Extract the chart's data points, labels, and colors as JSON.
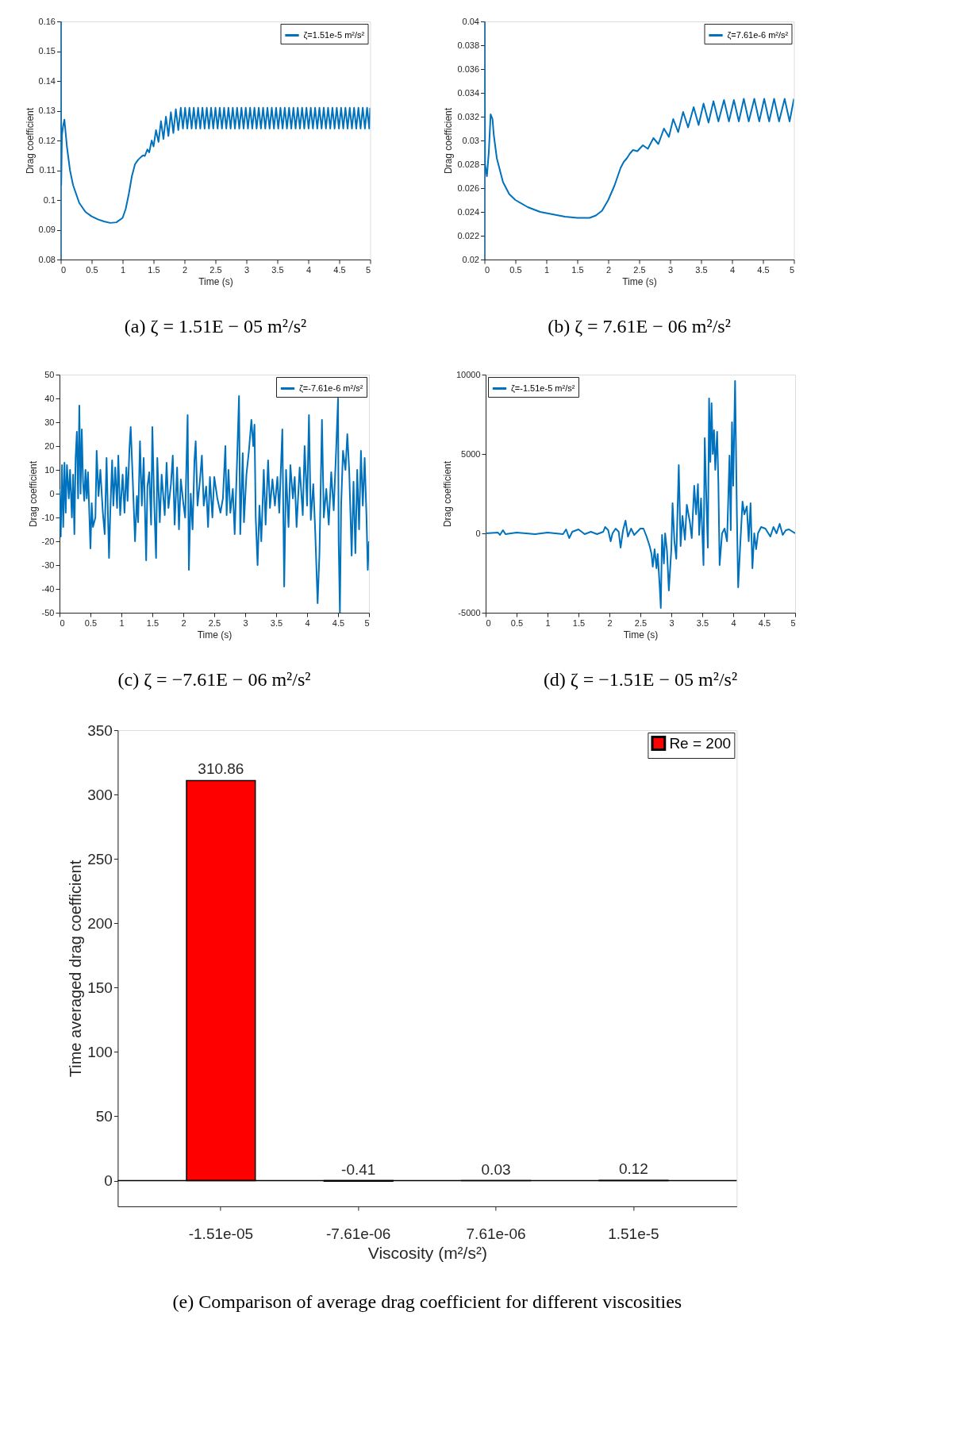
{
  "chart_data": [
    {
      "type": "line",
      "title": "(a) ζ = 1.51E − 05 m²/s²",
      "xlabel": "Time (s)",
      "ylabel": "Drag coefficient",
      "xlim": [
        0,
        5
      ],
      "xticks": [
        0,
        0.5,
        1,
        1.5,
        2,
        2.5,
        3,
        3.5,
        4,
        4.5,
        5
      ],
      "ylim": [
        0.08,
        0.16
      ],
      "yticks": [
        0.08,
        0.09,
        0.1,
        0.11,
        0.12,
        0.13,
        0.14,
        0.15,
        0.16
      ],
      "legend": "top right",
      "series": [
        {
          "name": "ζ=1.51e-5 m²/s²",
          "color": "#0072bd",
          "x": [
            0,
            0.003,
            0.008,
            0.02,
            0.04,
            0.06,
            0.1,
            0.15,
            0.2,
            0.3,
            0.4,
            0.5,
            0.6,
            0.7,
            0.8,
            0.9,
            1.0,
            1.05,
            1.1,
            1.15,
            1.2,
            1.25,
            1.3,
            1.33,
            1.36,
            1.4,
            1.43,
            1.47,
            1.5,
            1.54,
            1.58,
            1.62,
            1.66,
            1.7,
            1.74,
            1.78,
            1.82,
            1.86,
            1.9,
            1.94,
            1.975,
            2.01,
            2.045,
            2.08,
            2.115,
            2.15,
            2.185,
            2.22,
            2.255,
            2.29,
            2.325,
            2.36,
            2.395,
            2.43,
            2.465,
            2.5,
            2.535,
            2.57,
            2.605,
            2.64,
            2.675,
            2.71,
            2.745,
            2.78,
            2.815,
            2.85,
            2.885,
            2.92,
            2.955,
            2.99,
            3.025,
            3.06,
            3.095,
            3.13,
            3.165,
            3.2,
            3.235,
            3.27,
            3.305,
            3.34,
            3.375,
            3.41,
            3.445,
            3.48,
            3.515,
            3.55,
            3.585,
            3.62,
            3.655,
            3.69,
            3.725,
            3.76,
            3.795,
            3.83,
            3.865,
            3.9,
            3.935,
            3.97,
            4.005,
            4.04,
            4.075,
            4.11,
            4.145,
            4.18,
            4.215,
            4.25,
            4.285,
            4.32,
            4.355,
            4.39,
            4.425,
            4.46,
            4.495,
            4.53,
            4.565,
            4.6,
            4.635,
            4.67,
            4.705,
            4.74,
            4.775,
            4.81,
            4.845,
            4.88,
            4.915,
            4.95,
            4.985,
            5.0
          ],
          "values": [
            0.08,
            0.16,
            0.105,
            0.122,
            0.125,
            0.127,
            0.118,
            0.11,
            0.105,
            0.099,
            0.096,
            0.0945,
            0.0935,
            0.0928,
            0.0923,
            0.0925,
            0.094,
            0.097,
            0.102,
            0.108,
            0.112,
            0.1135,
            0.1145,
            0.115,
            0.1148,
            0.117,
            0.116,
            0.12,
            0.118,
            0.1235,
            0.1195,
            0.1265,
            0.1205,
            0.128,
            0.1215,
            0.1295,
            0.1225,
            0.1305,
            0.1235,
            0.131,
            0.124,
            0.131,
            0.124,
            0.131,
            0.124,
            0.131,
            0.124,
            0.131,
            0.124,
            0.131,
            0.124,
            0.131,
            0.124,
            0.131,
            0.124,
            0.131,
            0.124,
            0.131,
            0.124,
            0.131,
            0.124,
            0.131,
            0.124,
            0.131,
            0.124,
            0.131,
            0.124,
            0.131,
            0.124,
            0.131,
            0.124,
            0.131,
            0.124,
            0.131,
            0.124,
            0.131,
            0.124,
            0.131,
            0.124,
            0.131,
            0.124,
            0.131,
            0.124,
            0.131,
            0.124,
            0.131,
            0.124,
            0.131,
            0.124,
            0.131,
            0.124,
            0.131,
            0.124,
            0.131,
            0.124,
            0.131,
            0.124,
            0.131,
            0.124,
            0.131,
            0.124,
            0.131,
            0.124,
            0.131,
            0.124,
            0.131,
            0.124,
            0.131,
            0.124,
            0.131,
            0.124,
            0.131,
            0.124,
            0.131,
            0.124,
            0.131,
            0.124,
            0.131,
            0.124,
            0.131,
            0.124,
            0.131,
            0.124,
            0.131,
            0.124,
            0.131,
            0.124,
            0.131
          ]
        }
      ]
    },
    {
      "type": "line",
      "title": "(b) ζ = 7.61E − 06 m²/s²",
      "xlabel": "Time (s)",
      "ylabel": "Drag coefficient",
      "xlim": [
        0,
        5
      ],
      "xticks": [
        0,
        0.5,
        1,
        1.5,
        2,
        2.5,
        3,
        3.5,
        4,
        4.5,
        5
      ],
      "ylim": [
        0.02,
        0.04
      ],
      "yticks": [
        0.02,
        0.022,
        0.024,
        0.026,
        0.028,
        0.03,
        0.032,
        0.034,
        0.036,
        0.038,
        0.04
      ],
      "legend": "top right",
      "series": [
        {
          "name": "ζ=7.61e-6 m²/s²",
          "color": "#0072bd",
          "x": [
            0,
            0.003,
            0.01,
            0.04,
            0.07,
            0.1,
            0.13,
            0.15,
            0.2,
            0.3,
            0.4,
            0.5,
            0.7,
            0.9,
            1.1,
            1.3,
            1.5,
            1.7,
            1.8,
            1.9,
            2.0,
            2.1,
            2.2,
            2.25,
            2.3,
            2.35,
            2.4,
            2.47,
            2.56,
            2.64,
            2.73,
            2.81,
            2.9,
            2.98,
            3.05,
            3.13,
            3.21,
            3.29,
            3.38,
            3.46,
            3.54,
            3.62,
            3.7,
            3.78,
            3.87,
            3.95,
            4.03,
            4.11,
            4.19,
            4.27,
            4.36,
            4.44,
            4.52,
            4.6,
            4.68,
            4.76,
            4.85,
            4.93,
            5.0
          ],
          "values": [
            0.02,
            0.04,
            0.028,
            0.027,
            0.029,
            0.0322,
            0.0318,
            0.0305,
            0.0285,
            0.0265,
            0.0255,
            0.025,
            0.0244,
            0.024,
            0.0238,
            0.0236,
            0.0235,
            0.0235,
            0.0237,
            0.0241,
            0.025,
            0.0262,
            0.0277,
            0.0282,
            0.0285,
            0.0289,
            0.0292,
            0.0291,
            0.0296,
            0.0293,
            0.0302,
            0.0297,
            0.031,
            0.0303,
            0.0318,
            0.0307,
            0.0324,
            0.0311,
            0.0328,
            0.0313,
            0.0331,
            0.0315,
            0.0333,
            0.0316,
            0.0334,
            0.0316,
            0.0334,
            0.0316,
            0.0335,
            0.0316,
            0.0335,
            0.0316,
            0.0335,
            0.0316,
            0.0335,
            0.0316,
            0.0335,
            0.0316,
            0.0335
          ]
        }
      ]
    },
    {
      "type": "line",
      "title": "(c) ζ = −7.61E − 06 m²/s²",
      "xlabel": "Time (s)",
      "ylabel": "Drag coefficient",
      "xlim": [
        0,
        5
      ],
      "xticks": [
        0,
        0.5,
        1,
        1.5,
        2,
        2.5,
        3,
        3.5,
        4,
        4.5,
        5
      ],
      "ylim": [
        -50,
        50
      ],
      "yticks": [
        -50,
        -40,
        -30,
        -20,
        -10,
        0,
        10,
        20,
        30,
        40,
        50
      ],
      "legend": "top right",
      "series": [
        {
          "name": "ζ=-7.61e-6 m²/s²",
          "color": "#0072bd",
          "x": [
            0,
            0.02,
            0.04,
            0.06,
            0.08,
            0.1,
            0.12,
            0.15,
            0.17,
            0.2,
            0.22,
            0.24,
            0.26,
            0.28,
            0.3,
            0.32,
            0.34,
            0.36,
            0.38,
            0.4,
            0.42,
            0.44,
            0.46,
            0.5,
            0.52,
            0.54,
            0.58,
            0.6,
            0.63,
            0.66,
            0.7,
            0.73,
            0.76,
            0.8,
            0.82,
            0.85,
            0.87,
            0.9,
            0.93,
            0.95,
            0.98,
            1.02,
            1.05,
            1.08,
            1.1,
            1.13,
            1.15,
            1.18,
            1.22,
            1.25,
            1.27,
            1.3,
            1.33,
            1.36,
            1.4,
            1.42,
            1.45,
            1.48,
            1.5,
            1.53,
            1.56,
            1.58,
            1.62,
            1.65,
            1.7,
            1.73,
            1.76,
            1.8,
            1.83,
            1.86,
            1.9,
            1.93,
            1.96,
            2.0,
            2.03,
            2.07,
            2.09,
            2.12,
            2.15,
            2.18,
            2.2,
            2.23,
            2.27,
            2.3,
            2.33,
            2.37,
            2.4,
            2.43,
            2.47,
            2.5,
            2.55,
            2.6,
            2.64,
            2.68,
            2.7,
            2.73,
            2.76,
            2.8,
            2.83,
            2.87,
            2.9,
            2.92,
            2.94,
            2.96,
            2.98,
            3.02,
            3.06,
            3.1,
            3.13,
            3.15,
            3.17,
            3.2,
            3.23,
            3.26,
            3.3,
            3.33,
            3.37,
            3.4,
            3.44,
            3.48,
            3.52,
            3.55,
            3.6,
            3.63,
            3.66,
            3.7,
            3.73,
            3.77,
            3.8,
            3.83,
            3.88,
            3.93,
            3.96,
            4.0,
            4.03,
            4.06,
            4.1,
            4.13,
            4.17,
            4.2,
            4.24,
            4.27,
            4.31,
            4.35,
            4.39,
            4.43,
            4.47,
            4.5,
            4.51,
            4.53,
            4.55,
            4.58,
            4.62,
            4.65,
            4.68,
            4.72,
            4.75,
            4.78,
            4.81,
            4.84,
            4.87,
            4.9,
            4.93,
            4.96,
            4.98,
            5.0
          ],
          "values": [
            2,
            -18,
            12,
            -14,
            13,
            -8,
            12,
            -2,
            10,
            -10,
            8,
            -17,
            15,
            26,
            -2,
            37,
            0,
            27,
            5,
            -3,
            10,
            -2,
            9,
            -23,
            -4,
            -14,
            -10,
            18,
            -1,
            10,
            -8,
            -17,
            15,
            -27,
            -8,
            14,
            -5,
            11,
            -6,
            16,
            -9,
            8,
            -8,
            11,
            -3,
            19,
            28,
            8,
            -20,
            -1,
            -12,
            22,
            -5,
            15,
            -28,
            3,
            9,
            -13,
            28,
            -4,
            -27,
            15,
            -12,
            8,
            -9,
            13,
            -6,
            4,
            16,
            -13,
            11,
            -15,
            6,
            -4,
            -10,
            33,
            -32,
            0,
            -15,
            14,
            22,
            -5,
            6,
            16,
            -5,
            3,
            -14,
            7,
            -10,
            7,
            -2,
            -8,
            -2,
            20,
            -9,
            10,
            -8,
            2,
            -17,
            15,
            41,
            -17,
            0,
            17,
            -12,
            8,
            18,
            31,
            20,
            29,
            -10,
            -30,
            -5,
            -20,
            10,
            -13,
            14,
            -6,
            6,
            -5,
            7,
            -8,
            27,
            -39,
            10,
            -14,
            12,
            -2,
            7,
            -14,
            11,
            -9,
            20,
            -5,
            33,
            -11,
            4,
            -15,
            -46,
            -25,
            31,
            -10,
            2,
            -13,
            9,
            -7,
            19,
            40,
            -20,
            -50,
            -5,
            18,
            10,
            25,
            10,
            -26,
            5,
            -25,
            10,
            -15,
            18,
            -5,
            15,
            -10,
            -32,
            -20
          ]
        }
      ]
    },
    {
      "type": "line",
      "title": "(d) ζ = −1.51E − 05 m²/s²",
      "xlabel": "Time (s)",
      "ylabel": "Drag coefficient",
      "xlim": [
        0,
        5
      ],
      "xticks": [
        0,
        0.5,
        1,
        1.5,
        2,
        2.5,
        3,
        3.5,
        4,
        4.5,
        5
      ],
      "ylim": [
        -5000,
        10000
      ],
      "yticks": [
        -5000,
        0,
        5000,
        10000
      ],
      "legend": "top left",
      "series": [
        {
          "name": "ζ=-1.51e-5 m²/s²",
          "color": "#0072bd",
          "x": [
            0,
            0.2,
            0.23,
            0.28,
            0.32,
            0.5,
            0.8,
            1.0,
            1.25,
            1.3,
            1.35,
            1.4,
            1.5,
            1.6,
            1.7,
            1.8,
            1.9,
            1.93,
            1.98,
            2.02,
            2.05,
            2.1,
            2.15,
            2.18,
            2.22,
            2.26,
            2.3,
            2.35,
            2.4,
            2.5,
            2.55,
            2.6,
            2.65,
            2.68,
            2.7,
            2.73,
            2.76,
            2.78,
            2.81,
            2.83,
            2.85,
            2.88,
            2.9,
            2.93,
            2.96,
            3.0,
            3.02,
            3.05,
            3.08,
            3.12,
            3.15,
            3.18,
            3.22,
            3.25,
            3.3,
            3.33,
            3.37,
            3.4,
            3.43,
            3.45,
            3.48,
            3.52,
            3.54,
            3.57,
            3.59,
            3.61,
            3.63,
            3.65,
            3.67,
            3.69,
            3.71,
            3.74,
            3.76,
            3.78,
            3.82,
            3.86,
            3.9,
            3.94,
            3.96,
            3.98,
            4.0,
            4.03,
            4.06,
            4.08,
            4.11,
            4.15,
            4.18,
            4.22,
            4.25,
            4.28,
            4.31,
            4.34,
            4.37,
            4.4,
            4.45,
            4.52,
            4.6,
            4.65,
            4.7,
            4.75,
            4.8,
            4.85,
            4.9,
            5.0
          ],
          "values": [
            0,
            50,
            -100,
            200,
            -50,
            50,
            -50,
            50,
            -50,
            250,
            -300,
            100,
            250,
            -50,
            100,
            -50,
            100,
            400,
            200,
            -500,
            0,
            300,
            100,
            -900,
            200,
            800,
            -200,
            300,
            -100,
            300,
            300,
            -200,
            -800,
            -1300,
            -2100,
            -1000,
            -2200,
            -1300,
            -3200,
            -4700,
            -100,
            -1900,
            0,
            -1100,
            -3600,
            -1000,
            1900,
            -500,
            -1600,
            4300,
            -800,
            1100,
            -400,
            1800,
            700,
            -300,
            3000,
            1200,
            3100,
            -100,
            2200,
            -2000,
            6000,
            1600,
            -900,
            8500,
            4500,
            8200,
            5000,
            6500,
            4000,
            6400,
            3200,
            -2000,
            0,
            300,
            -500,
            4900,
            200,
            7000,
            3000,
            9600,
            1000,
            -3400,
            -1000,
            2000,
            1200,
            1700,
            -500,
            1900,
            -2200,
            0,
            -1000,
            0,
            400,
            300,
            -200,
            400,
            0,
            600,
            -100,
            200,
            250,
            0
          ]
        }
      ]
    },
    {
      "type": "bar",
      "title": "(e) Comparison of average drag coefficient for different viscosities",
      "xlabel": "Viscosity (m²/s²)",
      "ylabel": "Time averaged drag coefficient",
      "categories": [
        "-1.51e-05",
        "-7.61e-06",
        "7.61e-06",
        "1.51e-5"
      ],
      "ylim": [
        -20,
        350
      ],
      "yticks": [
        0,
        50,
        100,
        150,
        200,
        250,
        300,
        350
      ],
      "legend": "top right",
      "data_labels": true,
      "series": [
        {
          "name": "Re = 200",
          "color": "#ff0000",
          "values": [
            310.86,
            -0.41,
            0.03,
            0.12
          ]
        }
      ],
      "ref_lines": [
        {
          "axis": "y",
          "value": 0,
          "color": "#000000"
        }
      ]
    }
  ]
}
